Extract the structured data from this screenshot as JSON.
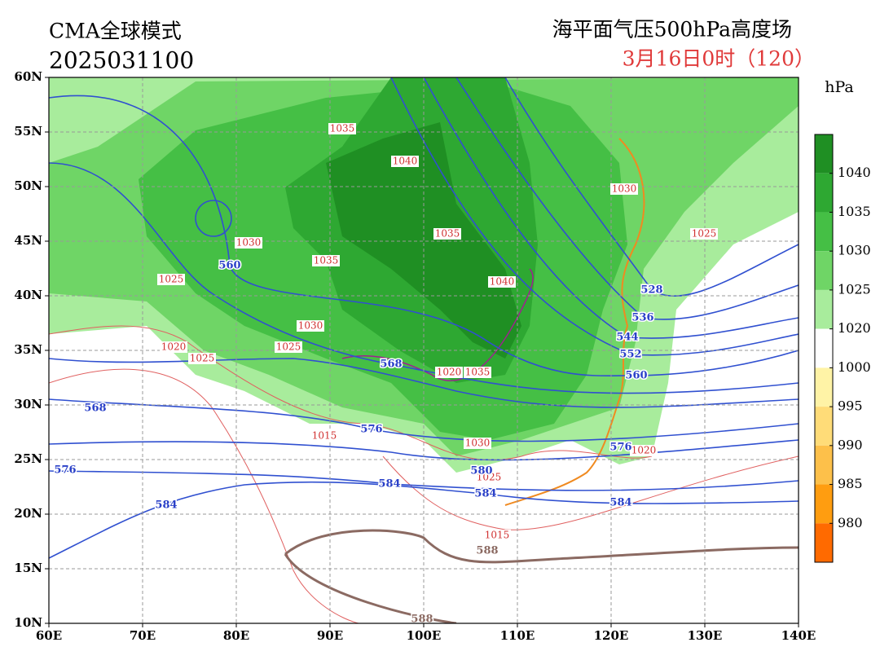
{
  "header": {
    "model": "CMA全球模式",
    "init_time": "2025031100",
    "title": "海平面气压500hPa高度场",
    "valid_time": "3月16日0时（120）"
  },
  "axes": {
    "lat_labels": [
      "60N",
      "55N",
      "50N",
      "45N",
      "40N",
      "35N",
      "30N",
      "25N",
      "20N",
      "15N",
      "10N"
    ],
    "lon_labels": [
      "60E",
      "70E",
      "80E",
      "90E",
      "100E",
      "110E",
      "120E",
      "130E",
      "140E"
    ]
  },
  "colorbar": {
    "unit": "hPa",
    "levels": [
      1040,
      1035,
      1030,
      1025,
      1020,
      1000,
      995,
      990,
      985,
      980
    ],
    "colors": [
      "#1f8f23",
      "#2ea832",
      "#45bf45",
      "#6fd566",
      "#a8ec9c",
      "#ffffff",
      "#fff3a6",
      "#ffdc78",
      "#fdc04a",
      "#ff9d10",
      "#ff6a00"
    ]
  },
  "contour_labels": {
    "pressure": [
      "1035",
      "1040",
      "1030",
      "1025",
      "1035",
      "1030",
      "1035",
      "1040",
      "1025",
      "1030",
      "1025",
      "1020",
      "1025",
      "1020",
      "1035",
      "1015",
      "1030",
      "1025",
      "1020",
      "1015"
    ],
    "height": [
      "560",
      "528",
      "536",
      "544",
      "552",
      "560",
      "568",
      "568",
      "576",
      "576",
      "576",
      "580",
      "584",
      "584",
      "584",
      "584",
      "588",
      "588"
    ]
  }
}
